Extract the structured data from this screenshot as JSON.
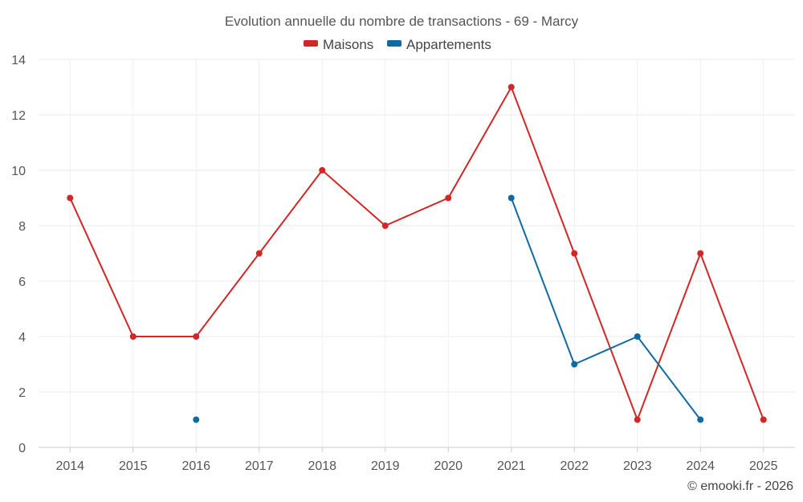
{
  "chart_data": {
    "type": "line",
    "title": "Evolution annuelle du nombre de transactions - 69 - Marcy",
    "categories": [
      "2014",
      "2015",
      "2016",
      "2017",
      "2018",
      "2019",
      "2020",
      "2021",
      "2022",
      "2023",
      "2024",
      "2025"
    ],
    "ylim": [
      0,
      14
    ],
    "yticks": [
      0,
      2,
      4,
      6,
      8,
      10,
      12,
      14
    ],
    "grid": true,
    "legend_position": "top-center",
    "series": [
      {
        "name": "Maisons",
        "color": "#d32626",
        "values": [
          9,
          4,
          4,
          7,
          10,
          8,
          9,
          13,
          7,
          1,
          7,
          1
        ]
      },
      {
        "name": "Appartements",
        "color": "#0e6aa3",
        "values": [
          null,
          null,
          1,
          null,
          null,
          null,
          null,
          9,
          3,
          4,
          1,
          null
        ]
      }
    ]
  },
  "credit": "© emooki.fr - 2026"
}
